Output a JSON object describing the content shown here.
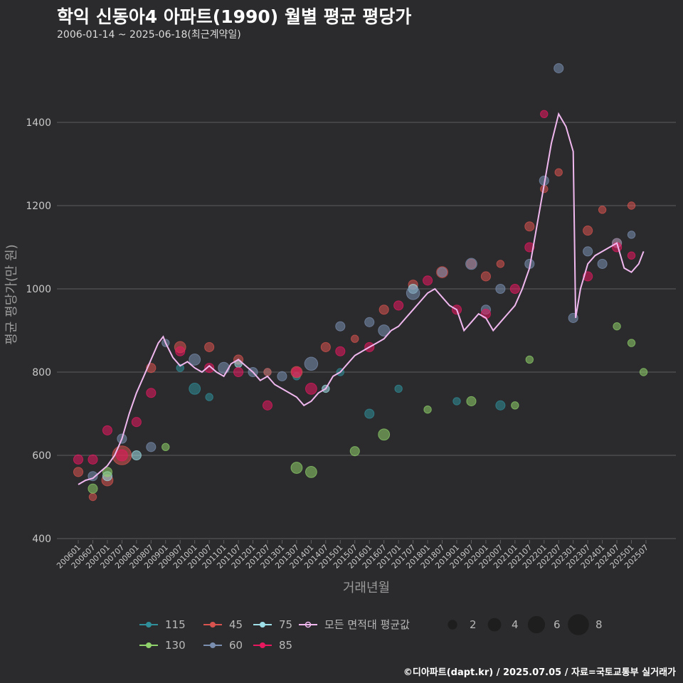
{
  "header": {
    "title": "학익 신동아4 아파트(1990) 월별 평균 평당가",
    "subtitle": "2006-01-14 ~ 2025-06-18(최근계약일)"
  },
  "caption": "©디아파트(dapt.kr) / 2025.07.05 / 자료=국토교통부 실거래가",
  "colors": {
    "background": "#2b2b2d",
    "grid": "#5e5e60",
    "average_line": "#f0b8ef",
    "s115": "#2f8f9a",
    "s45": "#d9534f",
    "s75": "#9fe0e8",
    "s130": "#8fd16a",
    "s60": "#7a8fb0",
    "s85": "#e8185f"
  },
  "chart_data": {
    "type": "scatter",
    "xlabel": "거래년월",
    "ylabel": "평균 평당가(만 원)",
    "x_range": [
      "2006-01",
      "2025-07"
    ],
    "ylim": [
      400,
      1560
    ],
    "y_ticks": [
      400,
      600,
      800,
      1000,
      1200,
      1400
    ],
    "x_ticks": [
      "200601",
      "200607",
      "200701",
      "200707",
      "200801",
      "200807",
      "200901",
      "200907",
      "201001",
      "201007",
      "201101",
      "201107",
      "201201",
      "201207",
      "201301",
      "201307",
      "201401",
      "201407",
      "201501",
      "201507",
      "201601",
      "201607",
      "201701",
      "201707",
      "201801",
      "201807",
      "201901",
      "201907",
      "202001",
      "202007",
      "202101",
      "202107",
      "202201",
      "202207",
      "202301",
      "202307",
      "202401",
      "202407",
      "202501",
      "202507"
    ],
    "grid": "horizontal",
    "legend": {
      "position": "bottom",
      "series_entries": [
        {
          "label": "115",
          "color_key": "s115",
          "kind": "point"
        },
        {
          "label": "45",
          "color_key": "s45",
          "kind": "point"
        },
        {
          "label": "75",
          "color_key": "s75",
          "kind": "point"
        },
        {
          "label": "모든 면적대 평균값",
          "color_key": "average_line",
          "kind": "line"
        },
        {
          "label": "130",
          "color_key": "s130",
          "kind": "point"
        },
        {
          "label": "60",
          "color_key": "s60",
          "kind": "point"
        },
        {
          "label": "85",
          "color_key": "s85",
          "kind": "point"
        }
      ],
      "size_entries": [
        {
          "label": "2",
          "value": 2
        },
        {
          "label": "4",
          "value": 4
        },
        {
          "label": "6",
          "value": 6
        },
        {
          "label": "8",
          "value": 8
        }
      ]
    },
    "average_line": {
      "name": "모든 면적대 평균값",
      "points": [
        [
          "2006-01",
          530
        ],
        [
          "2006-04",
          540
        ],
        [
          "2006-07",
          545
        ],
        [
          "2006-10",
          560
        ],
        [
          "2007-01",
          575
        ],
        [
          "2007-04",
          600
        ],
        [
          "2007-07",
          640
        ],
        [
          "2007-10",
          700
        ],
        [
          "2008-01",
          750
        ],
        [
          "2008-04",
          790
        ],
        [
          "2008-07",
          830
        ],
        [
          "2008-10",
          870
        ],
        [
          "2008-12",
          885
        ],
        [
          "2009-01",
          870
        ],
        [
          "2009-04",
          835
        ],
        [
          "2009-07",
          815
        ],
        [
          "2009-10",
          825
        ],
        [
          "2010-01",
          810
        ],
        [
          "2010-04",
          800
        ],
        [
          "2010-07",
          815
        ],
        [
          "2010-10",
          800
        ],
        [
          "2011-01",
          790
        ],
        [
          "2011-04",
          820
        ],
        [
          "2011-07",
          830
        ],
        [
          "2011-10",
          815
        ],
        [
          "2012-01",
          800
        ],
        [
          "2012-04",
          780
        ],
        [
          "2012-07",
          790
        ],
        [
          "2012-10",
          770
        ],
        [
          "2013-01",
          760
        ],
        [
          "2013-04",
          750
        ],
        [
          "2013-07",
          740
        ],
        [
          "2013-10",
          720
        ],
        [
          "2014-01",
          730
        ],
        [
          "2014-04",
          750
        ],
        [
          "2014-07",
          760
        ],
        [
          "2014-10",
          790
        ],
        [
          "2015-01",
          800
        ],
        [
          "2015-04",
          820
        ],
        [
          "2015-07",
          840
        ],
        [
          "2015-10",
          850
        ],
        [
          "2016-01",
          860
        ],
        [
          "2016-04",
          870
        ],
        [
          "2016-07",
          880
        ],
        [
          "2016-10",
          900
        ],
        [
          "2017-01",
          910
        ],
        [
          "2017-04",
          930
        ],
        [
          "2017-07",
          950
        ],
        [
          "2017-10",
          970
        ],
        [
          "2018-01",
          990
        ],
        [
          "2018-04",
          1000
        ],
        [
          "2018-07",
          980
        ],
        [
          "2018-10",
          960
        ],
        [
          "2019-01",
          950
        ],
        [
          "2019-04",
          900
        ],
        [
          "2019-07",
          920
        ],
        [
          "2019-10",
          940
        ],
        [
          "2020-01",
          930
        ],
        [
          "2020-04",
          900
        ],
        [
          "2020-07",
          920
        ],
        [
          "2020-10",
          940
        ],
        [
          "2021-01",
          960
        ],
        [
          "2021-04",
          1000
        ],
        [
          "2021-07",
          1050
        ],
        [
          "2021-10",
          1150
        ],
        [
          "2022-01",
          1250
        ],
        [
          "2022-04",
          1350
        ],
        [
          "2022-07",
          1420
        ],
        [
          "2022-10",
          1390
        ],
        [
          "2023-01",
          1330
        ],
        [
          "2023-02",
          930
        ],
        [
          "2023-04",
          1000
        ],
        [
          "2023-07",
          1060
        ],
        [
          "2023-10",
          1080
        ],
        [
          "2024-01",
          1090
        ],
        [
          "2024-04",
          1100
        ],
        [
          "2024-07",
          1110
        ],
        [
          "2024-10",
          1050
        ],
        [
          "2025-01",
          1040
        ],
        [
          "2025-04",
          1060
        ],
        [
          "2025-06",
          1090
        ]
      ]
    },
    "series": [
      {
        "name": "115",
        "color_key": "s115",
        "points": [
          [
            "2009-07",
            810,
            2
          ],
          [
            "2010-01",
            760,
            4
          ],
          [
            "2010-07",
            740,
            2
          ],
          [
            "2012-07",
            800,
            2
          ],
          [
            "2013-07",
            790,
            2
          ],
          [
            "2015-01",
            800,
            2
          ],
          [
            "2016-01",
            700,
            3
          ],
          [
            "2017-01",
            760,
            2
          ],
          [
            "2019-01",
            730,
            2
          ],
          [
            "2020-07",
            720,
            3
          ]
        ]
      },
      {
        "name": "45",
        "color_key": "s45",
        "points": [
          [
            "2006-01",
            560,
            3
          ],
          [
            "2006-07",
            500,
            2
          ],
          [
            "2007-01",
            540,
            4
          ],
          [
            "2007-07",
            600,
            8
          ],
          [
            "2008-07",
            810,
            3
          ],
          [
            "2009-07",
            860,
            4
          ],
          [
            "2010-07",
            860,
            3
          ],
          [
            "2011-07",
            830,
            3
          ],
          [
            "2012-07",
            800,
            2
          ],
          [
            "2013-07",
            800,
            4
          ],
          [
            "2014-07",
            860,
            3
          ],
          [
            "2015-07",
            880,
            2
          ],
          [
            "2016-07",
            950,
            3
          ],
          [
            "2017-07",
            1010,
            3
          ],
          [
            "2018-07",
            1040,
            4
          ],
          [
            "2019-07",
            1060,
            3
          ],
          [
            "2020-01",
            1030,
            3
          ],
          [
            "2020-07",
            1060,
            2
          ],
          [
            "2021-07",
            1150,
            3
          ],
          [
            "2022-01",
            1240,
            2
          ],
          [
            "2022-07",
            1280,
            2
          ],
          [
            "2023-07",
            1140,
            3
          ],
          [
            "2024-01",
            1190,
            2
          ],
          [
            "2024-07",
            1110,
            3
          ],
          [
            "2025-01",
            1200,
            2
          ]
        ]
      },
      {
        "name": "75",
        "color_key": "s75",
        "points": [
          [
            "2007-01",
            550,
            3
          ],
          [
            "2008-01",
            600,
            3
          ],
          [
            "2011-07",
            820,
            2
          ],
          [
            "2014-07",
            760,
            2
          ],
          [
            "2017-07",
            1000,
            3
          ]
        ]
      },
      {
        "name": "130",
        "color_key": "s130",
        "points": [
          [
            "2006-07",
            520,
            3
          ],
          [
            "2007-01",
            560,
            3
          ],
          [
            "2009-01",
            620,
            2
          ],
          [
            "2013-07",
            570,
            4
          ],
          [
            "2014-01",
            560,
            4
          ],
          [
            "2015-07",
            610,
            3
          ],
          [
            "2016-07",
            650,
            4
          ],
          [
            "2018-01",
            710,
            2
          ],
          [
            "2019-07",
            730,
            3
          ],
          [
            "2021-01",
            720,
            2
          ],
          [
            "2021-07",
            830,
            2
          ],
          [
            "2024-07",
            910,
            2
          ],
          [
            "2025-01",
            870,
            2
          ],
          [
            "2025-06",
            800,
            2
          ]
        ]
      },
      {
        "name": "60",
        "color_key": "s60",
        "points": [
          [
            "2006-07",
            550,
            3
          ],
          [
            "2007-07",
            640,
            3
          ],
          [
            "2008-07",
            620,
            3
          ],
          [
            "2009-01",
            870,
            2
          ],
          [
            "2010-01",
            830,
            4
          ],
          [
            "2011-01",
            810,
            4
          ],
          [
            "2012-01",
            800,
            3
          ],
          [
            "2013-01",
            790,
            3
          ],
          [
            "2014-01",
            820,
            5
          ],
          [
            "2015-01",
            910,
            3
          ],
          [
            "2016-01",
            920,
            3
          ],
          [
            "2016-07",
            900,
            4
          ],
          [
            "2017-07",
            990,
            5
          ],
          [
            "2018-07",
            1040,
            3
          ],
          [
            "2019-07",
            1060,
            4
          ],
          [
            "2020-01",
            950,
            3
          ],
          [
            "2020-07",
            1000,
            3
          ],
          [
            "2021-07",
            1060,
            3
          ],
          [
            "2022-01",
            1260,
            3
          ],
          [
            "2022-07",
            1530,
            3
          ],
          [
            "2023-01",
            930,
            3
          ],
          [
            "2023-07",
            1090,
            3
          ],
          [
            "2024-01",
            1060,
            3
          ],
          [
            "2024-07",
            1110,
            3
          ],
          [
            "2025-01",
            1130,
            2
          ]
        ]
      },
      {
        "name": "85",
        "color_key": "s85",
        "points": [
          [
            "2006-01",
            590,
            3
          ],
          [
            "2006-07",
            590,
            3
          ],
          [
            "2007-01",
            660,
            3
          ],
          [
            "2007-07",
            600,
            4
          ],
          [
            "2008-01",
            680,
            3
          ],
          [
            "2008-07",
            750,
            3
          ],
          [
            "2009-07",
            850,
            3
          ],
          [
            "2010-07",
            810,
            3
          ],
          [
            "2011-07",
            800,
            3
          ],
          [
            "2012-07",
            720,
            3
          ],
          [
            "2013-07",
            800,
            3
          ],
          [
            "2014-01",
            760,
            4
          ],
          [
            "2015-01",
            850,
            3
          ],
          [
            "2016-01",
            860,
            3
          ],
          [
            "2017-01",
            960,
            3
          ],
          [
            "2018-01",
            1020,
            3
          ],
          [
            "2019-01",
            950,
            3
          ],
          [
            "2020-01",
            940,
            3
          ],
          [
            "2021-01",
            1000,
            3
          ],
          [
            "2021-07",
            1100,
            3
          ],
          [
            "2022-01",
            1420,
            2
          ],
          [
            "2023-07",
            1030,
            3
          ],
          [
            "2024-07",
            1100,
            3
          ],
          [
            "2025-01",
            1080,
            2
          ]
        ]
      }
    ]
  }
}
